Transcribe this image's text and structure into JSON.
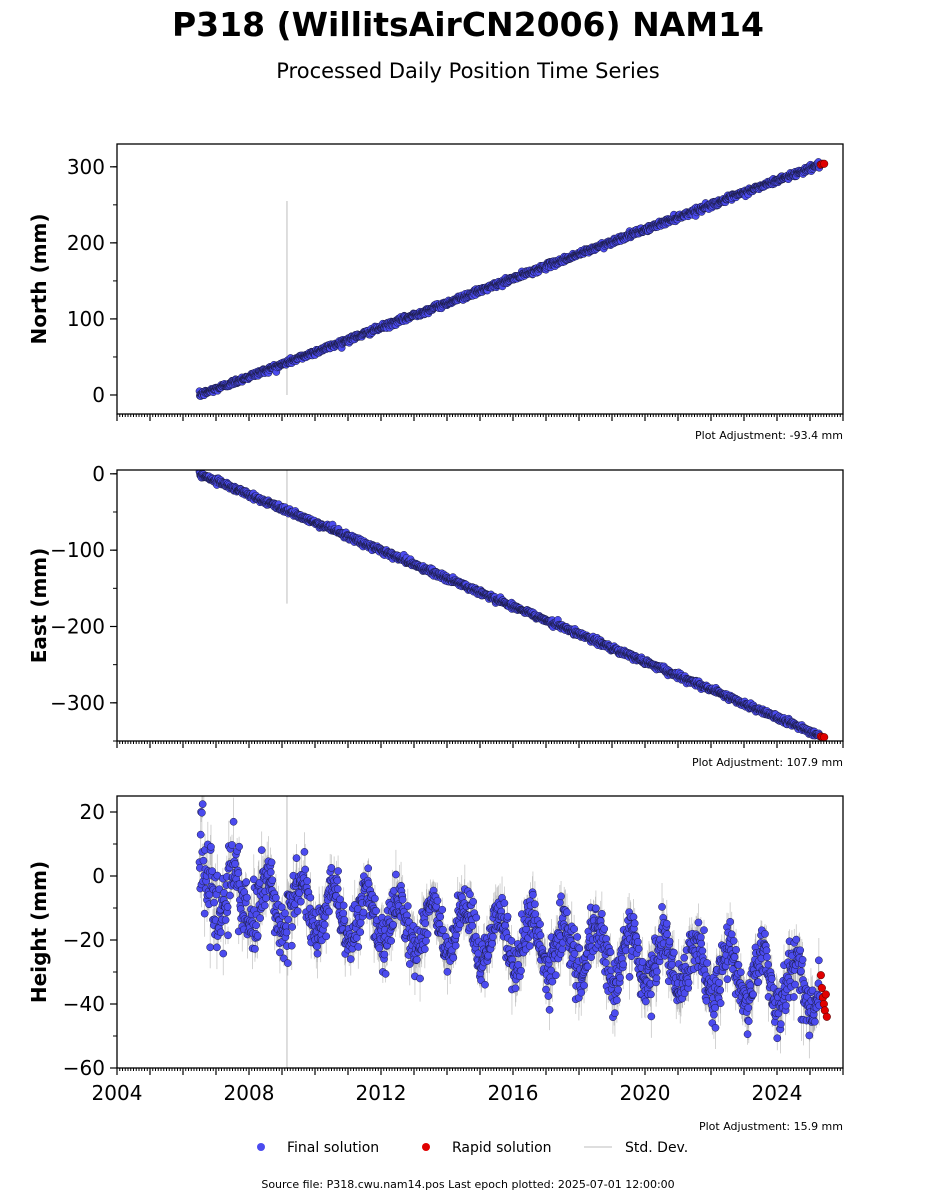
{
  "title": "P318 (WillitsAirCN2006) NAM14",
  "subtitle": "Processed Daily Position Time Series",
  "footer": "Source file: P318.cwu.nam14.pos  Last epoch plotted: 2025-07-01 12:00:00",
  "legend": {
    "final": "Final solution",
    "rapid": "Rapid solution",
    "std": "Std. Dev."
  },
  "colors": {
    "final": "#4b4bef",
    "rapid": "#e00000",
    "std": "#9a9a9a",
    "event_line": "#d3d3d3"
  },
  "chart_data": [
    {
      "type": "scatter",
      "ylabel": "North (mm)",
      "adjustment": "Plot Adjustment: -93.4 mm",
      "xlim": [
        2004,
        2026
      ],
      "ylim": [
        -25,
        330
      ],
      "yticks": [
        0,
        100,
        200,
        300
      ],
      "ytick_labels": [
        "0",
        "100",
        "200",
        "300"
      ],
      "event_line": {
        "x": 2009.15,
        "y": [
          0,
          255
        ]
      },
      "series": [
        {
          "name": "Final solution",
          "start": [
            2006.5,
            0
          ],
          "end": [
            2025.3,
            303
          ],
          "scatter_sd": 1.8,
          "std_sd": 1.5
        },
        {
          "name": "Rapid solution",
          "x": [
            2025.33,
            2025.38,
            2025.43
          ],
          "y": [
            303,
            304,
            304
          ]
        }
      ]
    },
    {
      "type": "scatter",
      "ylabel": "East (mm)",
      "adjustment": "Plot Adjustment: 107.9 mm",
      "xlim": [
        2004,
        2026
      ],
      "ylim": [
        -350,
        5
      ],
      "yticks": [
        0,
        -100,
        -200,
        -300
      ],
      "ytick_labels": [
        "0",
        "−100",
        "−200",
        "−300"
      ],
      "event_line": {
        "x": 2009.15,
        "y": [
          -170,
          5
        ]
      },
      "series": [
        {
          "name": "Final solution",
          "start": [
            2006.5,
            0
          ],
          "end": [
            2025.3,
            -343
          ],
          "scatter_sd": 1.8,
          "std_sd": 1.5
        },
        {
          "name": "Rapid solution",
          "x": [
            2025.33,
            2025.38,
            2025.43
          ],
          "y": [
            -344,
            -345,
            -345
          ]
        }
      ]
    },
    {
      "type": "scatter",
      "ylabel": "Height (mm)",
      "adjustment": "Plot Adjustment: 15.9 mm",
      "xlim": [
        2004,
        2026
      ],
      "ylim": [
        -60,
        25
      ],
      "yticks": [
        20,
        0,
        -20,
        -40,
        -60
      ],
      "ytick_labels": [
        "20",
        "0",
        "−20",
        "−40",
        "−60"
      ],
      "xticks": [
        2004,
        2008,
        2012,
        2016,
        2020,
        2024
      ],
      "xtick_labels": [
        "2004",
        "2008",
        "2012",
        "2016",
        "2020",
        "2024"
      ],
      "event_line": {
        "x": 2009.15,
        "y": [
          -60,
          25
        ]
      },
      "series": [
        {
          "name": "Final solution",
          "trend": [
            [
              2006.5,
              -5
            ],
            [
              2025.3,
              -35
            ]
          ],
          "seasonal_amplitude": 8,
          "scatter_sd": 4,
          "std_sd": 4
        },
        {
          "name": "Rapid solution",
          "x": [
            2025.33,
            2025.36,
            2025.39,
            2025.42,
            2025.45,
            2025.48,
            2025.51
          ],
          "y": [
            -31,
            -35,
            -38,
            -40,
            -42,
            -37,
            -44
          ]
        }
      ]
    }
  ]
}
